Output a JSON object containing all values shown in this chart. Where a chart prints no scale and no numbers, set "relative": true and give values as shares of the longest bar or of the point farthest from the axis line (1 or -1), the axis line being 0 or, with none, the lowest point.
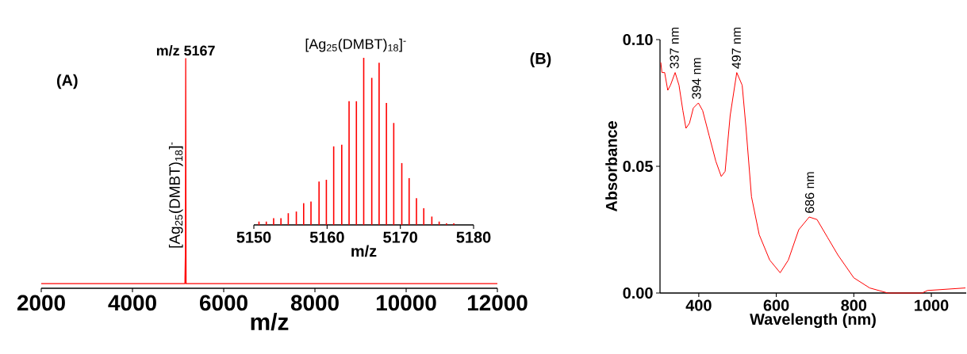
{
  "chart_data": [
    {
      "type": "line",
      "xlabel": "m/z",
      "x": [
        2000,
        3000,
        4000,
        5000,
        5100,
        5140,
        5150,
        5160,
        5167,
        5175,
        5190,
        5300,
        6000,
        7000,
        8000,
        9000,
        10000,
        11000,
        12000
      ],
      "series": [
        {
          "color": "#ff0000",
          "values": [
            0.02,
            0.02,
            0.02,
            0.02,
            0.02,
            0.02,
            0.02,
            0.15,
            1,
            0.02,
            0.02,
            0.02,
            0.02,
            0.02,
            0.02,
            0.02,
            0.02,
            0.02,
            0.02
          ]
        }
      ],
      "relative": true,
      "xlim": [
        2000,
        12000
      ],
      "xticks": [
        2000,
        4000,
        6000,
        8000,
        10000,
        12000
      ],
      "annotations": [
        "(A)",
        {
          "text": "m/z 5167",
          "x": 5167,
          "y": 1
        },
        {
          "text": "[Ag$_{25}$(DMBT)$_{18}$]$^{-}$",
          "x": 5167,
          "y": 0.42
        }
      ]
    },
    {
      "type": "bar",
      "title": "[Ag$_{25}$(DMBT)$_{18}$]$^{-}$",
      "xlabel": "m/z",
      "x": [
        5150.7,
        5151.7,
        5152.7,
        5153.7,
        5154.7,
        5155.8,
        5156.8,
        5157.8,
        5158.9,
        5159.9,
        5160.9,
        5162.0,
        5163.0,
        5164.0,
        5165.0,
        5166.1,
        5167.1,
        5168.1,
        5169.1,
        5170.2,
        5171.2,
        5172.2,
        5173.2,
        5174.3,
        5175.3,
        5176.3,
        5177.3
      ],
      "series": [
        {
          "color": "#ff0000",
          "values": [
            0.02,
            0.02,
            0.04,
            0.04,
            0.07,
            0.08,
            0.13,
            0.14,
            0.26,
            0.27,
            0.47,
            0.48,
            0.74,
            0.74,
            1,
            0.88,
            0.97,
            0.73,
            0.61,
            0.37,
            0.28,
            0.16,
            0.1,
            0.05,
            0.02,
            0.01,
            0.01
          ]
        }
      ],
      "relative": true,
      "xlim": [
        5150,
        5180
      ],
      "xticks": [
        5150,
        5160,
        5170,
        5180
      ]
    },
    {
      "type": "line",
      "xlabel": "Wavelength (nm)",
      "ylabel": "Absorbance",
      "x": [
        302,
        305,
        312,
        320,
        327,
        339,
        349,
        359,
        367,
        376,
        386,
        399,
        410,
        427,
        444,
        458,
        468,
        481,
        498,
        512,
        522,
        536,
        556,
        583,
        610,
        631,
        658,
        685,
        705,
        732,
        759,
        800,
        841,
        888,
        976,
        990,
        1088
      ],
      "series": [
        {
          "color": "#ff0000",
          "values": [
            0.091,
            0.087,
            0.087,
            0.08,
            0.082,
            0.087,
            0.082,
            0.072,
            0.065,
            0.067,
            0.073,
            0.075,
            0.072,
            0.062,
            0.052,
            0.046,
            0.048,
            0.07,
            0.087,
            0.082,
            0.065,
            0.038,
            0.023,
            0.013,
            0.008,
            0.013,
            0.025,
            0.03,
            0.029,
            0.022,
            0.015,
            0.006,
            0.002,
            0.0,
            0.0,
            0.001,
            0.002
          ]
        }
      ],
      "xlim": [
        300,
        1090
      ],
      "ylim": [
        0,
        0.1
      ],
      "xticks": [
        400,
        600,
        800,
        1000
      ],
      "yticks": [
        {
          "value": 0,
          "label": "0.00"
        },
        {
          "value": 0.05,
          "label": "0.05"
        },
        {
          "value": 0.1,
          "label": "0.10"
        }
      ],
      "annotations": [
        "(B)",
        {
          "text": "337 nm",
          "x": 337,
          "y": 0.087
        },
        {
          "text": "394 nm",
          "x": 394,
          "y": 0.075
        },
        {
          "text": "497 nm",
          "x": 497,
          "y": 0.087
        },
        {
          "text": "686 nm",
          "x": 686,
          "y": 0.03
        }
      ]
    }
  ]
}
